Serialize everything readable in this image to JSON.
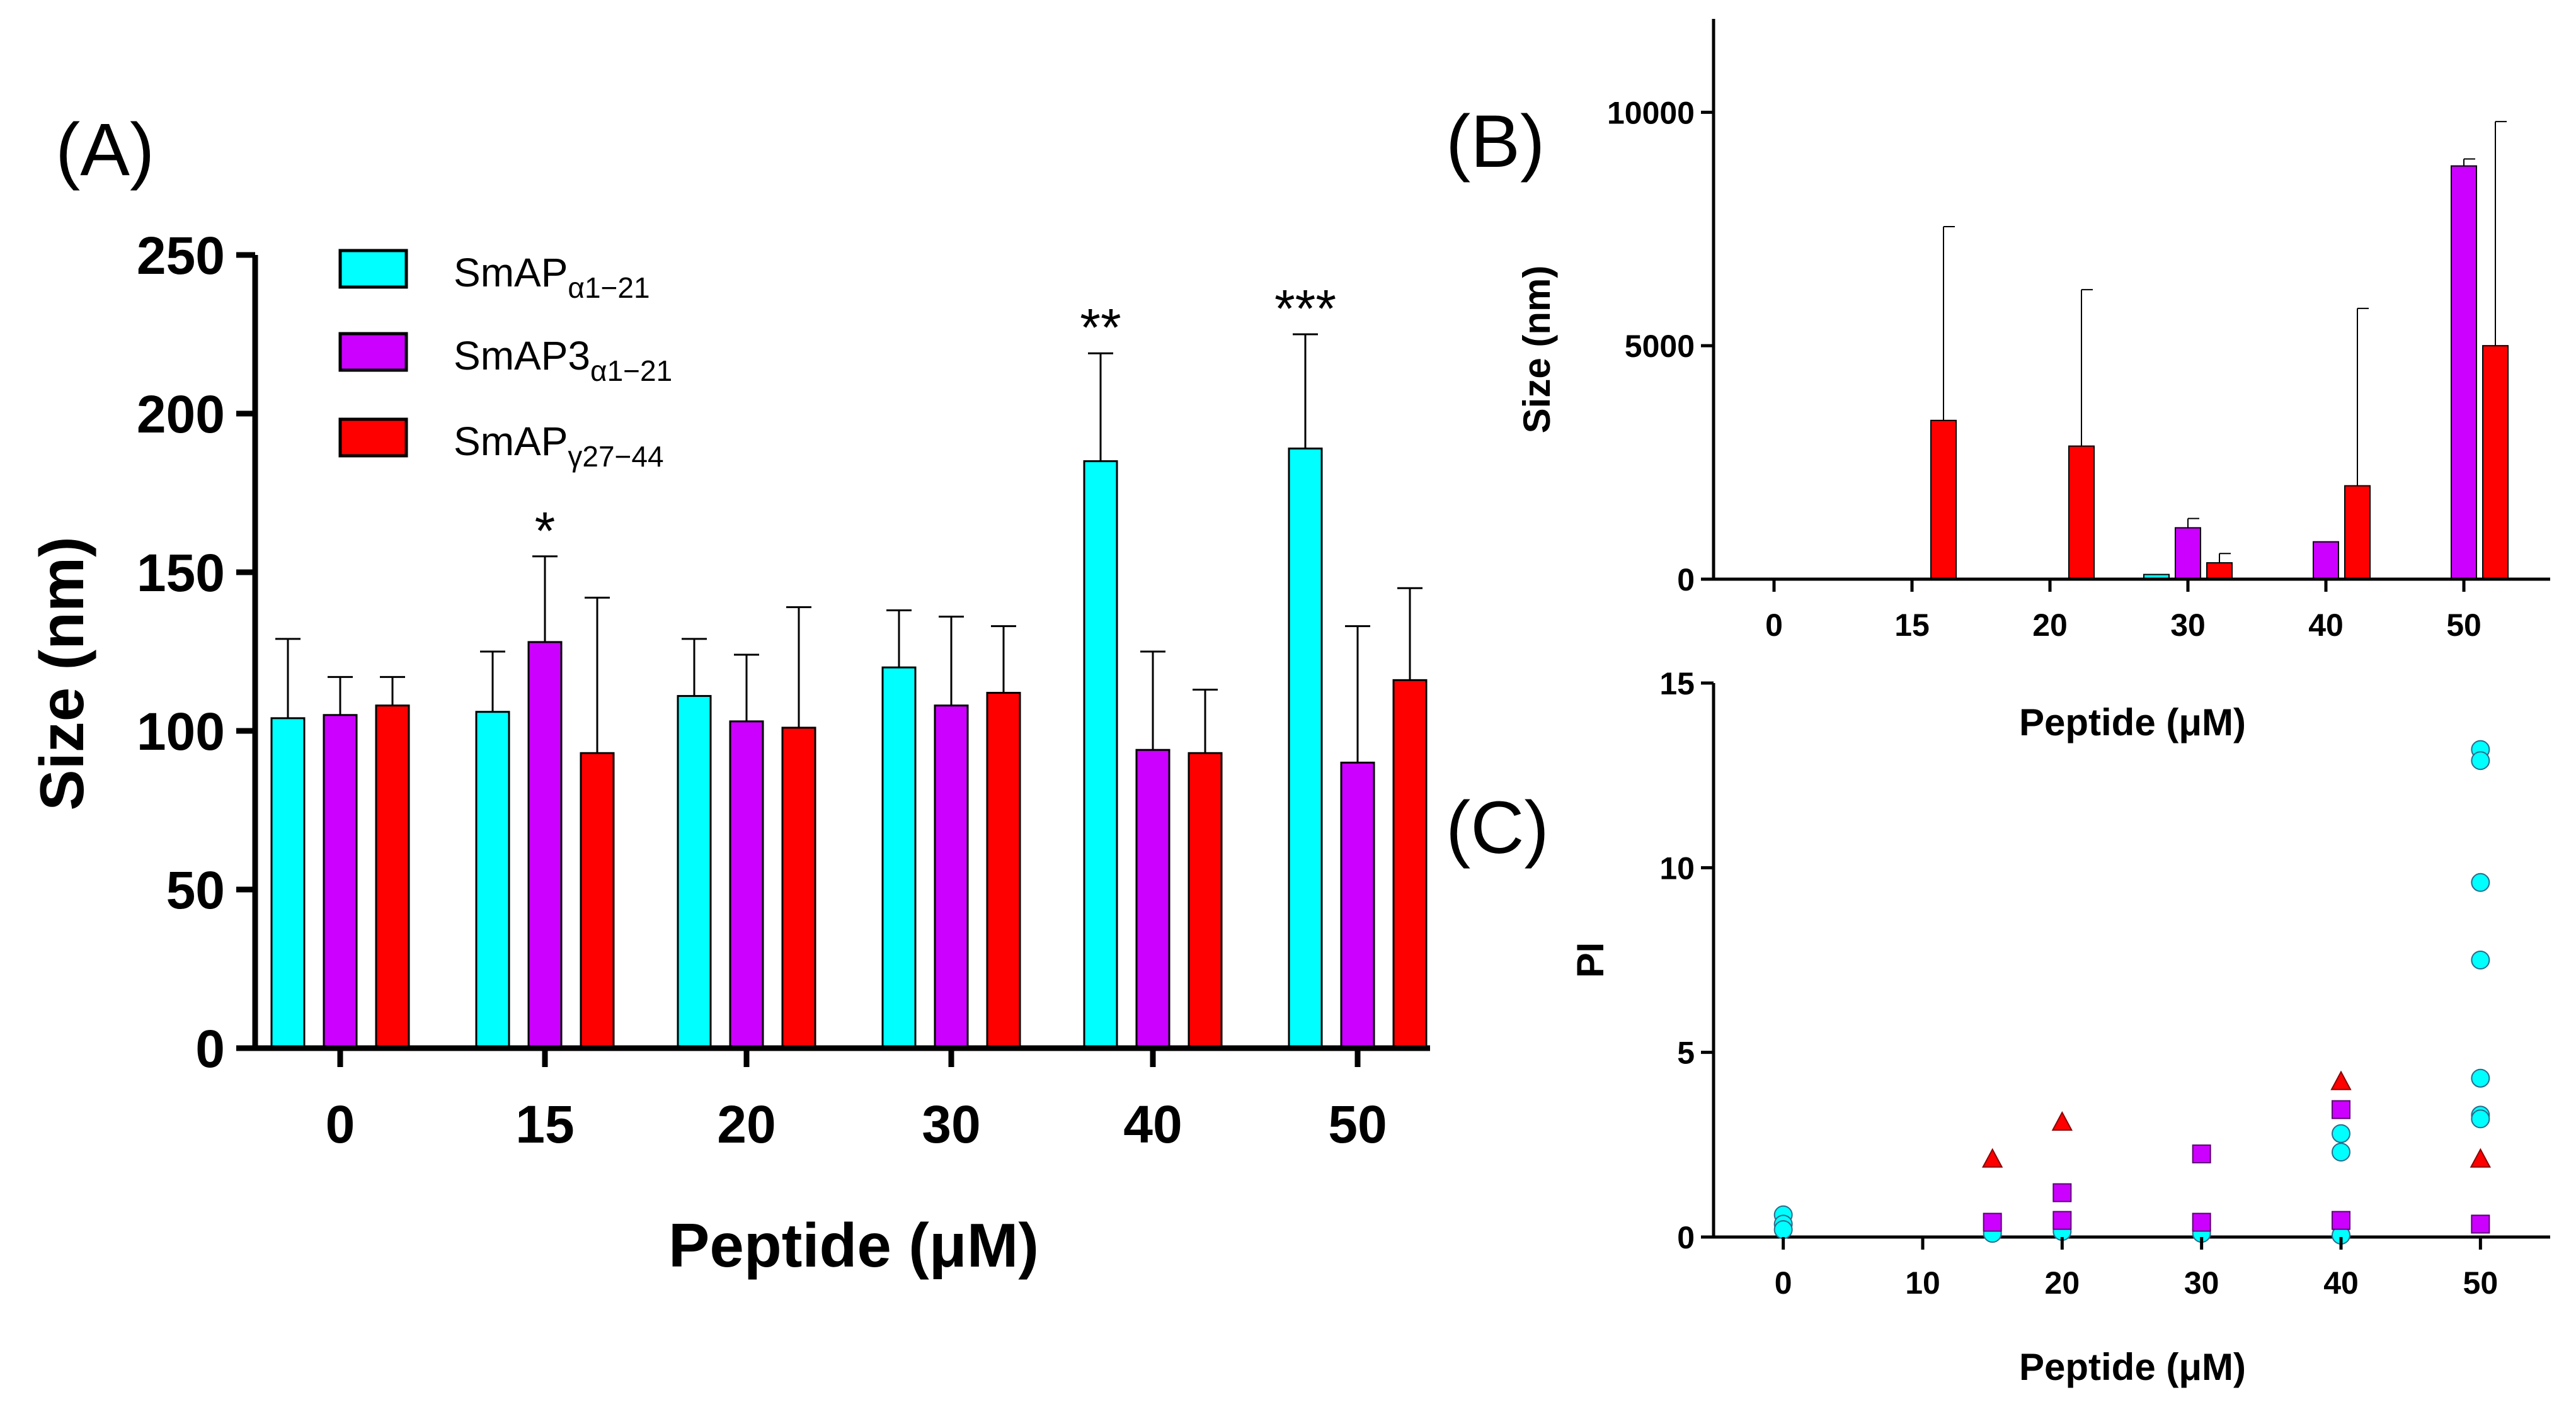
{
  "colors": {
    "SmAPa": "#00ffff",
    "SmAP3a": "#cc00ff",
    "SmAPg": "#ff0000",
    "axis": "#000000"
  },
  "legend": [
    {
      "key": "SmAPa",
      "base": "SmAP",
      "sub": "α1−21",
      "color": "#00ffff"
    },
    {
      "key": "SmAP3a",
      "base": "SmAP3",
      "sub": "α1−21",
      "color": "#cc00ff"
    },
    {
      "key": "SmAPg",
      "base": "SmAP",
      "sub": "γ27−44",
      "color": "#ff0000"
    }
  ],
  "chart_data": [
    {
      "panel": "(A)",
      "type": "bar",
      "categories": [
        "0",
        "15",
        "20",
        "30",
        "40",
        "50"
      ],
      "series": [
        {
          "name": "SmAPα1−21",
          "key": "SmAPa",
          "values": [
            104,
            106,
            111,
            120,
            185,
            189
          ],
          "errors": [
            25,
            19,
            18,
            18,
            34,
            36
          ]
        },
        {
          "name": "SmAP3α1−21",
          "key": "SmAP3a",
          "values": [
            105,
            128,
            103,
            108,
            94,
            90
          ],
          "errors": [
            12,
            27,
            21,
            28,
            31,
            43
          ]
        },
        {
          "name": "SmAPγ27−44",
          "key": "SmAPg",
          "values": [
            108,
            93,
            101,
            112,
            93,
            116
          ],
          "errors": [
            9,
            49,
            38,
            21,
            20,
            29
          ]
        }
      ],
      "significance": [
        {
          "category": "15",
          "series": "SmAP3a",
          "label": "*"
        },
        {
          "category": "40",
          "series": "SmAPa",
          "label": "**"
        },
        {
          "category": "50",
          "series": "SmAPa",
          "label": "***"
        }
      ],
      "xlabel": "Peptide (μM)",
      "ylabel": "Size (nm)",
      "ylim": [
        0,
        250
      ],
      "yticks": [
        0,
        50,
        100,
        150,
        200,
        250
      ],
      "yticklabels": [
        "0",
        "50",
        "100",
        "150",
        "200",
        "250"
      ]
    },
    {
      "panel": "(B)",
      "type": "bar",
      "categories": [
        "0",
        "15",
        "20",
        "30",
        "40",
        "50"
      ],
      "series": [
        {
          "name": "SmAPα1−21",
          "key": "SmAPa",
          "values": [
            0,
            0,
            0,
            100,
            0,
            0
          ],
          "errors": [
            0,
            0,
            0,
            0,
            0,
            0
          ]
        },
        {
          "name": "SmAP3α1−21",
          "key": "SmAP3a",
          "values": [
            0,
            0,
            0,
            1100,
            800,
            8850
          ],
          "errors": [
            0,
            0,
            0,
            200,
            0,
            150
          ]
        },
        {
          "name": "SmAPγ27−44",
          "key": "SmAPg",
          "values": [
            0,
            3400,
            2850,
            350,
            2000,
            5000
          ],
          "errors": [
            0,
            4150,
            3350,
            200,
            3800,
            4800
          ]
        }
      ],
      "xlabel": "Peptide (μM)",
      "ylabel": "Size (nm)",
      "ylim": [
        0,
        12000
      ],
      "yticks": [
        0,
        5000,
        10000
      ],
      "yticklabels": [
        "0",
        "5000",
        "10000"
      ]
    },
    {
      "panel": "(C)",
      "type": "scatter",
      "series": [
        {
          "name": "SmAPα1−21",
          "key": "SmAPa",
          "marker": "circle",
          "x": [
            0,
            0,
            0,
            15,
            20,
            30,
            30,
            40,
            40,
            40,
            40,
            50,
            50,
            50,
            50,
            50,
            50,
            50
          ],
          "y": [
            0.6,
            0.35,
            0.2,
            0.1,
            0.15,
            0.2,
            0.1,
            2.8,
            2.3,
            0.3,
            0.05,
            13.2,
            12.9,
            9.6,
            7.5,
            4.3,
            3.3,
            3.2
          ]
        },
        {
          "name": "SmAP3α1−21",
          "key": "SmAP3a",
          "marker": "square",
          "x": [
            15,
            20,
            20,
            30,
            30,
            40,
            40,
            50
          ],
          "y": [
            0.4,
            1.2,
            0.45,
            2.25,
            0.4,
            3.45,
            0.45,
            0.35
          ]
        },
        {
          "name": "SmAPγ27−44",
          "key": "SmAPg",
          "marker": "triangle",
          "x": [
            15,
            20,
            40,
            50
          ],
          "y": [
            2.1,
            3.1,
            4.2,
            2.1
          ]
        }
      ],
      "xlabel": "Peptide (μM)",
      "ylabel": "PI",
      "xlim": [
        -5,
        55
      ],
      "xticks": [
        0,
        10,
        20,
        30,
        40,
        50
      ],
      "xticklabels": [
        "0",
        "10",
        "20",
        "30",
        "40",
        "50"
      ],
      "ylim": [
        0,
        15
      ],
      "yticks": [
        0,
        5,
        10,
        15
      ],
      "yticklabels": [
        "0",
        "5",
        "10",
        "15"
      ]
    }
  ]
}
